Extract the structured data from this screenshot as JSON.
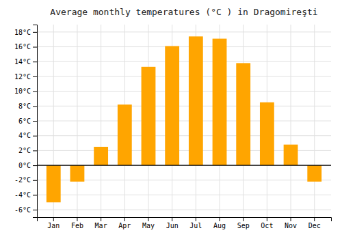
{
  "chart_data": {
    "type": "bar",
    "title": "Average monthly temperatures (°C ) in Dragomireşti",
    "categories": [
      "Jan",
      "Feb",
      "Mar",
      "Apr",
      "May",
      "Jun",
      "Jul",
      "Aug",
      "Sep",
      "Oct",
      "Nov",
      "Dec"
    ],
    "values": [
      -5.0,
      -2.2,
      2.5,
      8.2,
      13.3,
      16.1,
      17.4,
      17.1,
      13.8,
      8.5,
      2.8,
      -2.2
    ],
    "color": "#FFA500",
    "ylim": [
      -7,
      19
    ],
    "yticks": [
      {
        "value": -6,
        "label": "-6°C"
      },
      {
        "value": -4,
        "label": "-4°C"
      },
      {
        "value": -2,
        "label": "-2°C"
      },
      {
        "value": 0,
        "label": "0°C"
      },
      {
        "value": 2,
        "label": "2°C"
      },
      {
        "value": 4,
        "label": "4°C"
      },
      {
        "value": 6,
        "label": "6°C"
      },
      {
        "value": 8,
        "label": "8°C"
      },
      {
        "value": 10,
        "label": "10°C"
      },
      {
        "value": 12,
        "label": "12°C"
      },
      {
        "value": 14,
        "label": "14°C"
      },
      {
        "value": 16,
        "label": "16°C"
      },
      {
        "value": 18,
        "label": "18°C"
      }
    ],
    "grid": true
  }
}
